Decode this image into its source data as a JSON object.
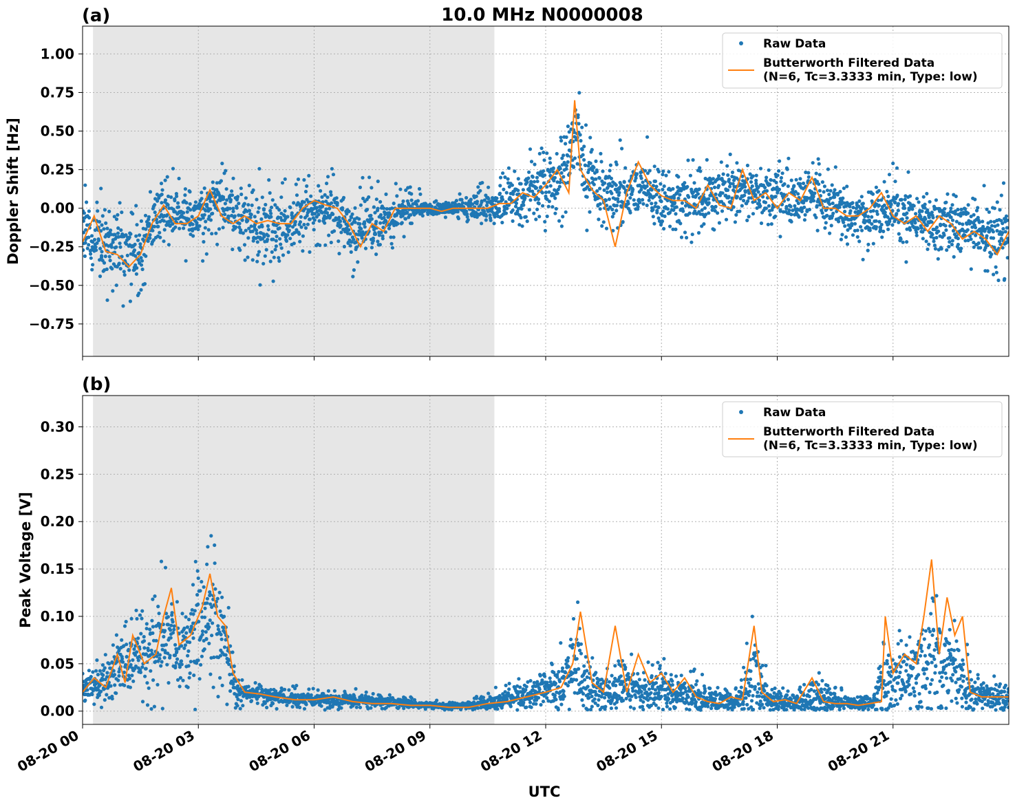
{
  "figure": {
    "title": "10.0 MHz N0000008",
    "xlabel": "UTC"
  },
  "colors": {
    "raw": "#1f77b4",
    "filtered": "#ff7f0e",
    "night_shade": "#e6e6e6",
    "grid": "#b0b0b0"
  },
  "chart_data": [
    {
      "type": "scatter",
      "panel_label": "(a)",
      "ylabel": "Doppler Shift [Hz]",
      "xlim": [
        0,
        24
      ],
      "ylim": [
        -0.96,
        1.18
      ],
      "yticks": [
        -0.75,
        -0.5,
        -0.25,
        0.0,
        0.25,
        0.5,
        0.75,
        1.0
      ],
      "ytick_labels": [
        "−0.75",
        "−0.50",
        "−0.25",
        "0.00",
        "0.25",
        "0.50",
        "0.75",
        "1.00"
      ],
      "xticks": [
        0,
        3,
        6,
        9,
        12,
        15,
        18,
        21
      ],
      "shaded_interval": [
        0.27,
        10.67
      ],
      "grid": true,
      "legend_position": "top-right",
      "legend": [
        "Raw Data",
        "Butterworth Filtered Data\n(N=6, Tc=3.3333 min, Type: low)"
      ],
      "series": [
        {
          "name": "Raw Data",
          "kind": "scatter",
          "x": [
            0,
            0.5,
            1.0,
            1.5,
            2.0,
            2.5,
            3.0,
            3.5,
            4.0,
            4.5,
            5.0,
            5.5,
            6.0,
            6.5,
            7.0,
            7.5,
            8.0,
            8.5,
            9.0,
            9.5,
            10.0,
            10.5,
            11.0,
            11.5,
            12.0,
            12.5,
            12.8,
            13.0,
            13.5,
            14.0,
            14.5,
            15.0,
            15.5,
            16.0,
            16.5,
            17.0,
            17.5,
            18.0,
            18.5,
            19.0,
            19.5,
            20.0,
            20.5,
            21.0,
            21.5,
            22.0,
            22.5,
            23.0,
            23.5,
            24.0
          ],
          "center": [
            -0.15,
            -0.22,
            -0.3,
            -0.28,
            0.0,
            -0.05,
            -0.05,
            0.05,
            -0.05,
            -0.1,
            -0.1,
            -0.08,
            0.0,
            0.0,
            -0.15,
            -0.1,
            -0.05,
            0.0,
            0.0,
            -0.01,
            0.0,
            0.0,
            0.03,
            0.08,
            0.15,
            0.2,
            0.55,
            0.2,
            0.1,
            0.08,
            0.15,
            0.05,
            0.05,
            0.03,
            0.1,
            0.15,
            0.1,
            0.08,
            0.05,
            0.1,
            0.0,
            -0.05,
            -0.05,
            0.0,
            -0.05,
            -0.1,
            -0.1,
            -0.12,
            -0.2,
            -0.15
          ],
          "spread": [
            0.28,
            0.28,
            0.3,
            0.25,
            0.22,
            0.22,
            0.22,
            0.25,
            0.25,
            0.28,
            0.28,
            0.25,
            0.2,
            0.2,
            0.25,
            0.25,
            0.18,
            0.12,
            0.05,
            0.05,
            0.1,
            0.15,
            0.2,
            0.25,
            0.3,
            0.3,
            0.3,
            0.3,
            0.25,
            0.25,
            0.25,
            0.22,
            0.22,
            0.22,
            0.22,
            0.22,
            0.22,
            0.22,
            0.22,
            0.22,
            0.22,
            0.22,
            0.22,
            0.22,
            0.22,
            0.22,
            0.22,
            0.22,
            0.25,
            0.25
          ]
        },
        {
          "name": "Butterworth Filtered Data\n(N=6, Tc=3.3333 min, Type: low)",
          "kind": "line",
          "x": [
            0,
            0.3,
            0.6,
            0.9,
            1.2,
            1.5,
            1.8,
            2.1,
            2.4,
            2.7,
            3.0,
            3.3,
            3.6,
            3.9,
            4.2,
            4.5,
            4.8,
            5.1,
            5.4,
            5.7,
            6.0,
            6.3,
            6.6,
            6.9,
            7.2,
            7.5,
            7.8,
            8.1,
            8.4,
            8.7,
            9.0,
            9.3,
            9.6,
            9.9,
            10.2,
            10.5,
            10.8,
            11.1,
            11.4,
            11.7,
            12.0,
            12.3,
            12.6,
            12.75,
            12.9,
            13.2,
            13.5,
            13.8,
            14.1,
            14.4,
            14.7,
            15.0,
            15.3,
            15.6,
            15.9,
            16.2,
            16.5,
            16.8,
            17.1,
            17.4,
            17.7,
            18.0,
            18.3,
            18.6,
            18.9,
            19.2,
            19.5,
            19.8,
            20.1,
            20.4,
            20.7,
            21.0,
            21.3,
            21.6,
            21.9,
            22.2,
            22.5,
            22.8,
            23.1,
            23.4,
            23.7,
            24.0
          ],
          "y": [
            -0.22,
            -0.05,
            -0.28,
            -0.3,
            -0.38,
            -0.3,
            -0.1,
            0.02,
            -0.1,
            -0.1,
            -0.05,
            0.12,
            -0.05,
            -0.1,
            -0.05,
            -0.1,
            -0.08,
            -0.1,
            -0.1,
            0.0,
            0.05,
            0.02,
            0.0,
            -0.1,
            -0.25,
            -0.1,
            -0.15,
            0.0,
            0.0,
            0.0,
            0.0,
            -0.02,
            0.0,
            0.0,
            0.0,
            0.0,
            0.03,
            0.03,
            0.1,
            0.07,
            0.15,
            0.25,
            0.1,
            0.7,
            0.25,
            0.12,
            0.05,
            -0.25,
            0.1,
            0.3,
            0.15,
            0.08,
            0.05,
            0.05,
            0.0,
            0.15,
            0.02,
            0.0,
            0.25,
            0.05,
            0.1,
            0.0,
            0.1,
            0.05,
            0.2,
            0.0,
            0.0,
            -0.05,
            -0.05,
            0.0,
            0.1,
            -0.05,
            -0.1,
            -0.05,
            -0.15,
            -0.05,
            -0.1,
            -0.2,
            -0.15,
            -0.2,
            -0.3,
            -0.15
          ]
        }
      ]
    },
    {
      "type": "scatter",
      "panel_label": "(b)",
      "ylabel": "Peak Voltage [V]",
      "xlim": [
        0,
        24
      ],
      "ylim": [
        -0.014,
        0.333
      ],
      "yticks": [
        0.0,
        0.05,
        0.1,
        0.15,
        0.2,
        0.25,
        0.3
      ],
      "ytick_labels": [
        "0.00",
        "0.05",
        "0.10",
        "0.15",
        "0.20",
        "0.25",
        "0.30"
      ],
      "xticks": [
        0,
        3,
        6,
        9,
        12,
        15,
        18,
        21
      ],
      "xtick_labels": [
        "08-20 00",
        "08-20 03",
        "08-20 06",
        "08-20 09",
        "08-20 12",
        "08-20 15",
        "08-20 18",
        "08-20 21"
      ],
      "shaded_interval": [
        0.27,
        10.67
      ],
      "grid": true,
      "legend_position": "top-right",
      "legend": [
        "Raw Data",
        "Butterworth Filtered Data\n(N=6, Tc=3.3333 min, Type: low)"
      ],
      "series": [
        {
          "name": "Raw Data",
          "kind": "scatter",
          "x": [
            0,
            0.5,
            1.0,
            1.5,
            2.0,
            2.3,
            2.5,
            3.0,
            3.3,
            3.6,
            4.0,
            4.5,
            5.0,
            6.0,
            7.0,
            8.0,
            9.0,
            9.5,
            10.0,
            10.5,
            11.0,
            11.5,
            12.0,
            12.5,
            12.8,
            13.0,
            13.5,
            14.0,
            14.5,
            15.0,
            15.5,
            16.0,
            16.5,
            17.0,
            17.4,
            17.8,
            18.5,
            18.9,
            19.5,
            20.0,
            20.5,
            20.8,
            21.0,
            21.5,
            22.0,
            22.3,
            22.6,
            23.0,
            23.5,
            24.0
          ],
          "center": [
            0.025,
            0.03,
            0.05,
            0.06,
            0.07,
            0.09,
            0.06,
            0.08,
            0.1,
            0.09,
            0.02,
            0.02,
            0.015,
            0.012,
            0.012,
            0.01,
            0.006,
            0.005,
            0.006,
            0.008,
            0.012,
            0.018,
            0.02,
            0.03,
            0.05,
            0.03,
            0.02,
            0.025,
            0.02,
            0.025,
            0.02,
            0.015,
            0.01,
            0.012,
            0.04,
            0.012,
            0.01,
            0.015,
            0.01,
            0.008,
            0.01,
            0.04,
            0.03,
            0.04,
            0.06,
            0.05,
            0.04,
            0.02,
            0.015,
            0.015
          ],
          "spread": [
            0.02,
            0.025,
            0.045,
            0.05,
            0.06,
            0.08,
            0.05,
            0.08,
            0.1,
            0.08,
            0.015,
            0.012,
            0.01,
            0.01,
            0.008,
            0.008,
            0.005,
            0.004,
            0.006,
            0.01,
            0.012,
            0.02,
            0.025,
            0.04,
            0.07,
            0.04,
            0.025,
            0.03,
            0.03,
            0.03,
            0.025,
            0.02,
            0.015,
            0.015,
            0.06,
            0.015,
            0.015,
            0.03,
            0.012,
            0.01,
            0.015,
            0.06,
            0.04,
            0.05,
            0.1,
            0.07,
            0.05,
            0.03,
            0.02,
            0.02
          ]
        },
        {
          "name": "Butterworth Filtered Data\n(N=6, Tc=3.3333 min, Type: low)",
          "kind": "line",
          "x": [
            0,
            0.3,
            0.6,
            0.9,
            1.1,
            1.3,
            1.6,
            1.9,
            2.1,
            2.3,
            2.5,
            2.8,
            3.1,
            3.3,
            3.5,
            3.7,
            3.9,
            4.2,
            4.6,
            5.0,
            5.5,
            6.0,
            6.5,
            7.0,
            7.5,
            8.0,
            8.5,
            9.0,
            9.5,
            10.0,
            10.5,
            11.0,
            11.5,
            12.0,
            12.4,
            12.7,
            12.9,
            13.2,
            13.5,
            13.8,
            14.1,
            14.4,
            14.7,
            15.0,
            15.3,
            15.6,
            15.9,
            16.2,
            16.5,
            16.8,
            17.1,
            17.4,
            17.6,
            17.9,
            18.2,
            18.5,
            18.9,
            19.2,
            19.5,
            19.8,
            20.1,
            20.4,
            20.7,
            20.8,
            21.0,
            21.3,
            21.6,
            21.8,
            22.0,
            22.2,
            22.4,
            22.6,
            22.8,
            23.0,
            23.3,
            23.6,
            24.0
          ],
          "y": [
            0.02,
            0.035,
            0.025,
            0.06,
            0.03,
            0.08,
            0.05,
            0.06,
            0.1,
            0.13,
            0.07,
            0.08,
            0.11,
            0.145,
            0.1,
            0.09,
            0.04,
            0.02,
            0.018,
            0.015,
            0.012,
            0.012,
            0.015,
            0.01,
            0.008,
            0.008,
            0.006,
            0.006,
            0.004,
            0.004,
            0.008,
            0.01,
            0.015,
            0.02,
            0.025,
            0.05,
            0.105,
            0.03,
            0.02,
            0.09,
            0.02,
            0.06,
            0.03,
            0.04,
            0.02,
            0.035,
            0.015,
            0.01,
            0.008,
            0.015,
            0.012,
            0.09,
            0.02,
            0.01,
            0.012,
            0.008,
            0.035,
            0.01,
            0.008,
            0.008,
            0.006,
            0.008,
            0.01,
            0.1,
            0.04,
            0.06,
            0.05,
            0.1,
            0.16,
            0.06,
            0.12,
            0.08,
            0.1,
            0.02,
            0.015,
            0.015,
            0.015
          ]
        }
      ]
    }
  ]
}
